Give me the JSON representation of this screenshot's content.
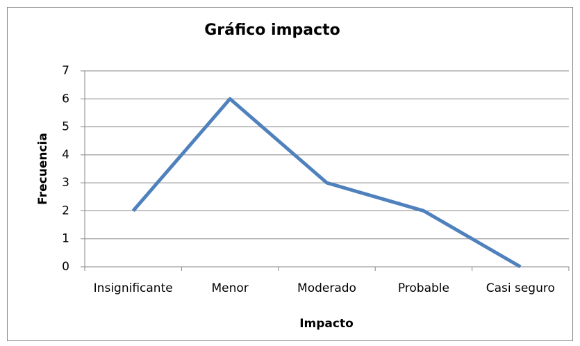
{
  "chart_data": {
    "type": "line",
    "title": "Gráfico impacto",
    "x_label": "Impacto",
    "y_label": "Frecuencia",
    "categories": [
      "Insignificante",
      "Menor",
      "Moderado",
      "Probable",
      "Casi seguro"
    ],
    "series": [
      {
        "name": "Frecuencia",
        "color": "#4f81bd",
        "values": [
          2,
          6,
          3,
          2,
          0
        ]
      }
    ],
    "ylim": [
      0,
      7
    ],
    "yticks": [
      0,
      1,
      2,
      3,
      4,
      5,
      6,
      7
    ],
    "grid": true
  }
}
